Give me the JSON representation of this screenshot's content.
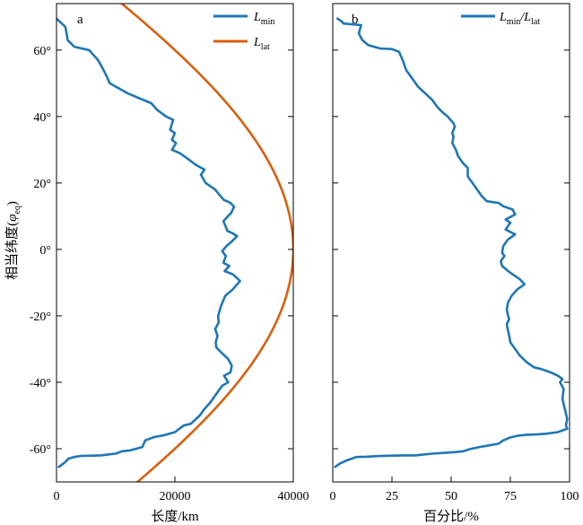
{
  "colors": {
    "blue": "#1f77b4",
    "orange": "#d95f0e",
    "frame": "#000000"
  },
  "ylabel": {
    "main": "相当纬度(",
    "var": "φ",
    "sub": "eq",
    "close": ")"
  },
  "chart_data": [
    {
      "type": "line",
      "panel_letter": "a",
      "xlabel": "长度/km",
      "xlim": [
        0,
        40000
      ],
      "ylim": [
        -70,
        74
      ],
      "xticks": [
        0,
        20000,
        40000
      ],
      "xtick_labels": [
        "0",
        "20000",
        "40000"
      ],
      "yticks": [
        -60,
        -40,
        -20,
        0,
        20,
        40,
        60
      ],
      "ytick_labels": [
        "-60°",
        "-40°",
        "-20°",
        "0°",
        "20°",
        "40°",
        "60°"
      ],
      "legend_position": "top-right",
      "series": [
        {
          "name": "L_min",
          "legend": {
            "main": "L",
            "sub": "min",
            "tail": ""
          },
          "color": "#1f77b4",
          "points": [
            [
              0,
              69.5
            ],
            [
              1500,
              67
            ],
            [
              1900,
              63
            ],
            [
              3000,
              61
            ],
            [
              5500,
              60
            ],
            [
              7000,
              57
            ],
            [
              7800,
              54.5
            ],
            [
              8500,
              52
            ],
            [
              9000,
              50
            ],
            [
              10000,
              49
            ],
            [
              12000,
              47
            ],
            [
              14000,
              45.5
            ],
            [
              16000,
              44
            ],
            [
              17000,
              42
            ],
            [
              18500,
              40
            ],
            [
              19700,
              39
            ],
            [
              19200,
              36
            ],
            [
              20000,
              35
            ],
            [
              19500,
              33
            ],
            [
              20200,
              32
            ],
            [
              19500,
              30
            ],
            [
              20800,
              29
            ],
            [
              22000,
              27.5
            ],
            [
              23500,
              25.5
            ],
            [
              25000,
              24
            ],
            [
              24400,
              22.5
            ],
            [
              25200,
              20
            ],
            [
              26000,
              19
            ],
            [
              26800,
              18
            ],
            [
              27500,
              16.5
            ],
            [
              28200,
              15
            ],
            [
              29400,
              14
            ],
            [
              30000,
              12.8
            ],
            [
              29500,
              11
            ],
            [
              28200,
              8.5
            ],
            [
              28900,
              5.5
            ],
            [
              29800,
              4.8
            ],
            [
              30500,
              4
            ],
            [
              29500,
              2.2
            ],
            [
              28700,
              1
            ],
            [
              28000,
              -0.5
            ],
            [
              28600,
              -2
            ],
            [
              28200,
              -4
            ],
            [
              29200,
              -5
            ],
            [
              28400,
              -6.5
            ],
            [
              29800,
              -7.5
            ],
            [
              31000,
              -9.5
            ],
            [
              29800,
              -12
            ],
            [
              28500,
              -14
            ],
            [
              27800,
              -17
            ],
            [
              27300,
              -20
            ],
            [
              27400,
              -22
            ],
            [
              26800,
              -24
            ],
            [
              27200,
              -26
            ],
            [
              26900,
              -28
            ],
            [
              27000,
              -29.5
            ],
            [
              27800,
              -31
            ],
            [
              29000,
              -33
            ],
            [
              29600,
              -35
            ],
            [
              29400,
              -37
            ],
            [
              28300,
              -38
            ],
            [
              29000,
              -40
            ],
            [
              28000,
              -41
            ],
            [
              27000,
              -43.5
            ],
            [
              26000,
              -46
            ],
            [
              25000,
              -48
            ],
            [
              24200,
              -50
            ],
            [
              22700,
              -52.5
            ],
            [
              21500,
              -53
            ],
            [
              20000,
              -55
            ],
            [
              18000,
              -56
            ],
            [
              16500,
              -56.5
            ],
            [
              15000,
              -57.5
            ],
            [
              14500,
              -59.5
            ],
            [
              12500,
              -60.5
            ],
            [
              11000,
              -60.8
            ],
            [
              10000,
              -61.5
            ],
            [
              7500,
              -62
            ],
            [
              4000,
              -62.2
            ],
            [
              3000,
              -62.5
            ],
            [
              2000,
              -63
            ],
            [
              1500,
              -64
            ],
            [
              400,
              -65.5
            ]
          ]
        },
        {
          "name": "L_lat",
          "legend": {
            "main": "L",
            "sub": "lat",
            "tail": ""
          },
          "color": "#d95f0e",
          "function": "40000*cos(latitude)",
          "y_range": [
            -70,
            74
          ]
        }
      ]
    },
    {
      "type": "line",
      "panel_letter": "b",
      "xlabel": "百分比/%",
      "xlim": [
        0,
        100
      ],
      "ylim": [
        -70,
        74
      ],
      "xticks": [
        0,
        25,
        50,
        75,
        100
      ],
      "xtick_labels": [
        "0",
        "25",
        "50",
        "75",
        "100"
      ],
      "yticks": [
        -60,
        -40,
        -20,
        0,
        20,
        40,
        60
      ],
      "legend_position": "top-right",
      "series": [
        {
          "name": "L_min/L_lat",
          "legend": {
            "main": "L",
            "sub": "min",
            "tail": "/L",
            "sub2": "lat"
          },
          "color": "#1f77b4",
          "points": [
            [
              2,
              69.5
            ],
            [
              4,
              68.5
            ],
            [
              4.5,
              68
            ],
            [
              12,
              67.5
            ],
            [
              11,
              65
            ],
            [
              12.5,
              63
            ],
            [
              15,
              61.5
            ],
            [
              20,
              60.5
            ],
            [
              25,
              60.3
            ],
            [
              28,
              59.5
            ],
            [
              29.5,
              57
            ],
            [
              31,
              54
            ],
            [
              33,
              52
            ],
            [
              36,
              49
            ],
            [
              39,
              47
            ],
            [
              42,
              45
            ],
            [
              44,
              43
            ],
            [
              46,
              41.5
            ],
            [
              48.5,
              40
            ],
            [
              51,
              38
            ],
            [
              51.5,
              37
            ],
            [
              50.5,
              35
            ],
            [
              51,
              34
            ],
            [
              50.5,
              32
            ],
            [
              52,
              30
            ],
            [
              53,
              28
            ],
            [
              55,
              26
            ],
            [
              57,
              24.5
            ],
            [
              57,
              22
            ],
            [
              59,
              20
            ],
            [
              61,
              18
            ],
            [
              63,
              16
            ],
            [
              65,
              14.5
            ],
            [
              70,
              14
            ],
            [
              72,
              13
            ],
            [
              76,
              12
            ],
            [
              77,
              10.5
            ],
            [
              73,
              9
            ],
            [
              75,
              8
            ],
            [
              73,
              6
            ],
            [
              77,
              4.5
            ],
            [
              74,
              3
            ],
            [
              72,
              1
            ],
            [
              71.5,
              -1
            ],
            [
              72.5,
              -2
            ],
            [
              71,
              -3.5
            ],
            [
              71.5,
              -5
            ],
            [
              74,
              -6.5
            ],
            [
              76,
              -7.5
            ],
            [
              79,
              -9
            ],
            [
              81,
              -10.5
            ],
            [
              78,
              -12
            ],
            [
              75.5,
              -14
            ],
            [
              74,
              -16
            ],
            [
              73.5,
              -18
            ],
            [
              74,
              -20
            ],
            [
              74.5,
              -21
            ],
            [
              73.5,
              -22.5
            ],
            [
              74,
              -24.5
            ],
            [
              74.5,
              -26
            ],
            [
              75,
              -28
            ],
            [
              77,
              -30
            ],
            [
              79,
              -32
            ],
            [
              82,
              -34
            ],
            [
              85,
              -35.5
            ],
            [
              88,
              -36
            ],
            [
              92,
              -37
            ],
            [
              95,
              -38
            ],
            [
              97,
              -39
            ],
            [
              96,
              -40
            ],
            [
              97.5,
              -42
            ],
            [
              97,
              -45
            ],
            [
              98,
              -48
            ],
            [
              99,
              -51
            ],
            [
              98.5,
              -53
            ],
            [
              99,
              -54
            ],
            [
              95,
              -55
            ],
            [
              90,
              -55.5
            ],
            [
              86,
              -55.7
            ],
            [
              82,
              -55.8
            ],
            [
              78,
              -56.1
            ],
            [
              75,
              -56.6
            ],
            [
              72,
              -57.5
            ],
            [
              70,
              -58.5
            ],
            [
              66,
              -59
            ],
            [
              62,
              -59.5
            ],
            [
              58,
              -60.1
            ],
            [
              55,
              -60.8
            ],
            [
              52,
              -61
            ],
            [
              48,
              -61.2
            ],
            [
              42,
              -61.5
            ],
            [
              38,
              -61.8
            ],
            [
              35,
              -62
            ],
            [
              30,
              -62
            ],
            [
              20,
              -62.2
            ],
            [
              14,
              -62.4
            ],
            [
              10,
              -62.5
            ],
            [
              8,
              -63
            ],
            [
              6,
              -63.5
            ],
            [
              3,
              -64.5
            ],
            [
              1,
              -65.5
            ]
          ]
        }
      ]
    }
  ]
}
